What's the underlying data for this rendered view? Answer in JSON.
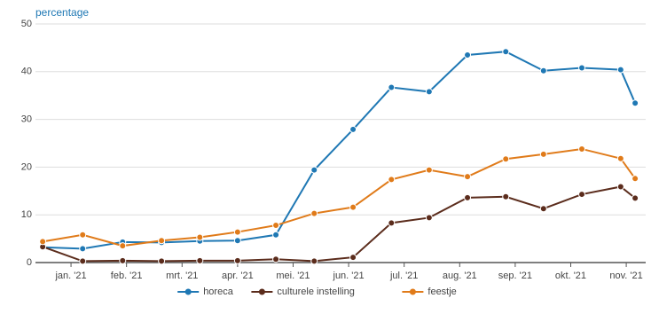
{
  "chart_data": {
    "type": "line",
    "ylabel": "percentage",
    "x": [
      0.49,
      1.21,
      1.93,
      2.63,
      3.32,
      4.0,
      4.69,
      5.38,
      6.08,
      6.77,
      7.45,
      8.14,
      8.83,
      9.51,
      10.2,
      10.9,
      11.16
    ],
    "xlim": [
      0.36,
      11.35
    ],
    "xticks": [
      {
        "value": 1,
        "label": "jan. '21"
      },
      {
        "value": 2,
        "label": "feb. '21"
      },
      {
        "value": 3,
        "label": "mrt. '21"
      },
      {
        "value": 4,
        "label": "apr. '21"
      },
      {
        "value": 5,
        "label": "mei. '21"
      },
      {
        "value": 6,
        "label": "jun. '21"
      },
      {
        "value": 7,
        "label": "jul. '21"
      },
      {
        "value": 8,
        "label": "aug. '21"
      },
      {
        "value": 9,
        "label": "sep. '21"
      },
      {
        "value": 10,
        "label": "okt. '21"
      },
      {
        "value": 11,
        "label": "nov. '21"
      }
    ],
    "ylim": [
      0,
      50
    ],
    "yticks": [
      0,
      10,
      20,
      30,
      40,
      50
    ],
    "grid": true,
    "legend": "bottom",
    "series": [
      {
        "name": "horeca",
        "color": "#1f78b4",
        "values": [
          3.2,
          2.9,
          4.3,
          4.2,
          4.5,
          4.6,
          5.8,
          19.4,
          27.9,
          36.7,
          35.8,
          43.5,
          44.2,
          40.2,
          40.8,
          40.4,
          33.4
        ]
      },
      {
        "name": "culturele instelling",
        "color": "#5b2c1c",
        "values": [
          3.3,
          0.3,
          0.4,
          0.3,
          0.4,
          0.4,
          0.7,
          0.3,
          1.1,
          8.3,
          9.4,
          13.6,
          13.8,
          11.3,
          14.3,
          15.9,
          13.5
        ]
      },
      {
        "name": "feestje",
        "color": "#e07b1a",
        "values": [
          4.4,
          5.8,
          3.5,
          4.6,
          5.3,
          6.4,
          7.8,
          10.3,
          11.6,
          17.4,
          19.4,
          18.0,
          21.7,
          22.7,
          23.8,
          21.8,
          17.6
        ]
      }
    ]
  }
}
